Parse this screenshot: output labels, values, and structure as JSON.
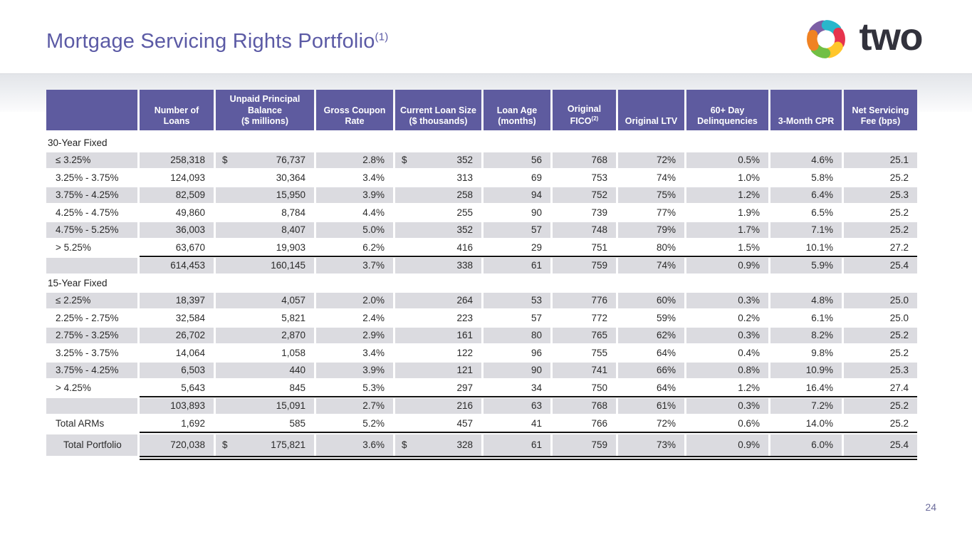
{
  "slide": {
    "title": "Mortgage Servicing Rights Portfolio",
    "title_superscript": "(1)",
    "logo_text": "two",
    "page_number": "24"
  },
  "colors": {
    "header_bg": "#5E5B9F",
    "row_alt": "#DBDBE0",
    "title": "#5B5AA5",
    "logo_text": "#32323C",
    "rule": "#141414",
    "page_number": "#6C6C9C"
  },
  "logo": {
    "mark_colors": [
      {
        "name": "purple",
        "color": "#7C5FA5"
      },
      {
        "name": "teal",
        "color": "#29B7CB"
      },
      {
        "name": "red",
        "color": "#E6334D"
      },
      {
        "name": "yellow",
        "color": "#FFC62B"
      },
      {
        "name": "green",
        "color": "#71BF44"
      },
      {
        "name": "orange",
        "color": "#F08223"
      }
    ]
  },
  "table": {
    "columns": [
      {
        "lines": [
          ""
        ]
      },
      {
        "lines": [
          "Number of",
          "Loans"
        ]
      },
      {
        "lines": [
          "Unpaid Principal",
          "Balance",
          "($ millions)"
        ]
      },
      {
        "lines": [
          "Gross Coupon",
          "Rate"
        ]
      },
      {
        "lines": [
          "Current Loan Size",
          "($ thousands)"
        ]
      },
      {
        "lines": [
          "Loan Age",
          "(months)"
        ]
      },
      {
        "lines": [
          "Original",
          "FICO"
        ],
        "sup": "(2)",
        "sup_line": 1
      },
      {
        "lines": [
          "Original LTV"
        ]
      },
      {
        "lines": [
          "60+ Day",
          "Delinquencies"
        ]
      },
      {
        "lines": [
          "3-Month CPR"
        ]
      },
      {
        "lines": [
          "Net Servicing",
          "Fee (bps)"
        ]
      }
    ],
    "rows": [
      {
        "type": "section",
        "label": "30-Year Fixed"
      },
      {
        "type": "data",
        "shade": "gray",
        "label": "≤ 3.25%",
        "cells": [
          "258,318",
          {
            "d": "$",
            "v": "76,737"
          },
          "2.8%",
          {
            "d": "$",
            "v": "352"
          },
          "56",
          "768",
          "72%",
          "0.5%",
          "4.6%",
          "25.1"
        ]
      },
      {
        "type": "data",
        "shade": "white",
        "label": "3.25% - 3.75%",
        "cells": [
          "124,093",
          "30,364",
          "3.4%",
          "313",
          "69",
          "753",
          "74%",
          "1.0%",
          "5.8%",
          "25.2"
        ]
      },
      {
        "type": "data",
        "shade": "gray",
        "label": "3.75% - 4.25%",
        "cells": [
          "82,509",
          "15,950",
          "3.9%",
          "258",
          "94",
          "752",
          "75%",
          "1.2%",
          "6.4%",
          "25.3"
        ]
      },
      {
        "type": "data",
        "shade": "white",
        "label": "4.25% - 4.75%",
        "cells": [
          "49,860",
          "8,784",
          "4.4%",
          "255",
          "90",
          "739",
          "77%",
          "1.9%",
          "6.5%",
          "25.2"
        ]
      },
      {
        "type": "data",
        "shade": "gray",
        "label": "4.75% - 5.25%",
        "cells": [
          "36,003",
          "8,407",
          "5.0%",
          "352",
          "57",
          "748",
          "79%",
          "1.7%",
          "7.1%",
          "25.2"
        ]
      },
      {
        "type": "data",
        "shade": "white",
        "label": "> 5.25%",
        "cells": [
          "63,670",
          "19,903",
          "6.2%",
          "416",
          "29",
          "751",
          "80%",
          "1.5%",
          "10.1%",
          "27.2"
        ]
      },
      {
        "type": "rule"
      },
      {
        "type": "data",
        "shade": "gray",
        "label": "",
        "cells": [
          "614,453",
          "160,145",
          "3.7%",
          "338",
          "61",
          "759",
          "74%",
          "0.9%",
          "5.9%",
          "25.4"
        ]
      },
      {
        "type": "section",
        "label": "15-Year Fixed"
      },
      {
        "type": "data",
        "shade": "gray",
        "label": "≤ 2.25%",
        "cells": [
          "18,397",
          "4,057",
          "2.0%",
          "264",
          "53",
          "776",
          "60%",
          "0.3%",
          "4.8%",
          "25.0"
        ]
      },
      {
        "type": "data",
        "shade": "white",
        "label": "2.25% - 2.75%",
        "cells": [
          "32,584",
          "5,821",
          "2.4%",
          "223",
          "57",
          "772",
          "59%",
          "0.2%",
          "6.1%",
          "25.0"
        ]
      },
      {
        "type": "data",
        "shade": "gray",
        "label": "2.75% - 3.25%",
        "cells": [
          "26,702",
          "2,870",
          "2.9%",
          "161",
          "80",
          "765",
          "62%",
          "0.3%",
          "8.2%",
          "25.2"
        ]
      },
      {
        "type": "data",
        "shade": "white",
        "label": "3.25% - 3.75%",
        "cells": [
          "14,064",
          "1,058",
          "3.4%",
          "122",
          "96",
          "755",
          "64%",
          "0.4%",
          "9.8%",
          "25.2"
        ]
      },
      {
        "type": "data",
        "shade": "gray",
        "label": "3.75% - 4.25%",
        "cells": [
          "6,503",
          "440",
          "3.9%",
          "121",
          "90",
          "741",
          "66%",
          "0.8%",
          "10.9%",
          "25.3"
        ]
      },
      {
        "type": "data",
        "shade": "white",
        "label": "> 4.25%",
        "cells": [
          "5,643",
          "845",
          "5.3%",
          "297",
          "34",
          "750",
          "64%",
          "1.2%",
          "16.4%",
          "27.4"
        ]
      },
      {
        "type": "rule"
      },
      {
        "type": "data",
        "shade": "gray",
        "label": "",
        "cells": [
          "103,893",
          "15,091",
          "2.7%",
          "216",
          "63",
          "768",
          "61%",
          "0.3%",
          "7.2%",
          "25.2"
        ]
      },
      {
        "type": "data",
        "shade": "white",
        "label": "Total ARMs",
        "cells": [
          "1,692",
          "585",
          "5.2%",
          "457",
          "41",
          "766",
          "72%",
          "0.6%",
          "14.0%",
          "25.2"
        ]
      },
      {
        "type": "rule"
      },
      {
        "type": "data",
        "shade": "gray",
        "variant": "total",
        "label": "Total Portfolio",
        "cells": [
          "720,038",
          {
            "d": "$",
            "v": "175,821"
          },
          "3.6%",
          {
            "d": "$",
            "v": "328"
          },
          "61",
          "759",
          "73%",
          "0.9%",
          "6.0%",
          "25.4"
        ]
      },
      {
        "type": "double_rule"
      }
    ]
  }
}
